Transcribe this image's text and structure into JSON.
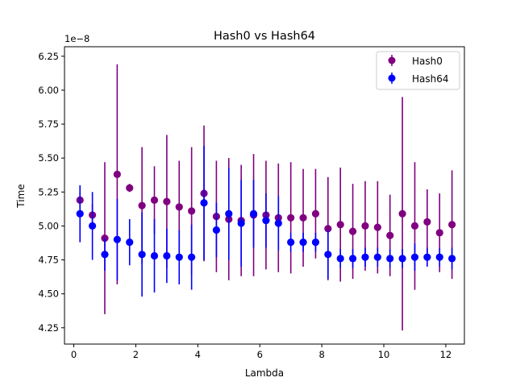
{
  "chart_data": {
    "type": "scatter",
    "title": "Hash0 vs Hash64",
    "xlabel": "Lambda",
    "ylabel": "Time",
    "offset_text": "1e−8",
    "xlim": [
      -0.3,
      12.6
    ],
    "ylim": [
      4.13,
      6.32
    ],
    "xticks": [
      0,
      2,
      4,
      6,
      8,
      10,
      12
    ],
    "xtick_labels": [
      "0",
      "2",
      "4",
      "6",
      "8",
      "10",
      "12"
    ],
    "yticks": [
      4.25,
      4.5,
      4.75,
      5.0,
      5.25,
      5.5,
      5.75,
      6.0,
      6.25
    ],
    "ytick_labels": [
      "4.25",
      "4.50",
      "4.75",
      "5.00",
      "5.25",
      "5.50",
      "5.75",
      "6.00",
      "6.25"
    ],
    "legend_position": "top-right",
    "series": [
      {
        "name": "Hash0",
        "color": "#800080",
        "x": [
          0.2,
          0.6,
          1.0,
          1.4,
          1.8,
          2.2,
          2.6,
          3.0,
          3.4,
          3.8,
          4.2,
          4.6,
          5.0,
          5.4,
          5.8,
          6.2,
          6.6,
          7.0,
          7.4,
          7.8,
          8.2,
          8.6,
          9.0,
          9.4,
          9.8,
          10.2,
          10.6,
          11.0,
          11.4,
          11.8,
          12.2
        ],
        "y": [
          5.19,
          5.08,
          4.91,
          5.38,
          5.28,
          5.15,
          5.19,
          5.18,
          5.14,
          5.11,
          5.24,
          5.07,
          5.05,
          5.04,
          5.08,
          5.08,
          5.06,
          5.06,
          5.06,
          5.09,
          4.98,
          5.01,
          4.96,
          5.0,
          4.99,
          4.93,
          5.09,
          5.0,
          5.03,
          4.95,
          5.01
        ],
        "err": [
          0.06,
          0.08,
          0.56,
          0.81,
          0.03,
          0.43,
          0.25,
          0.49,
          0.34,
          0.47,
          0.5,
          0.41,
          0.45,
          0.41,
          0.45,
          0.4,
          0.4,
          0.41,
          0.36,
          0.33,
          0.38,
          0.42,
          0.35,
          0.33,
          0.34,
          0.3,
          0.86,
          0.47,
          0.24,
          0.29,
          0.4
        ]
      },
      {
        "name": "Hash64",
        "color": "#0000ff",
        "x": [
          0.2,
          0.6,
          1.0,
          1.4,
          1.8,
          2.2,
          2.6,
          3.0,
          3.4,
          3.8,
          4.2,
          4.6,
          5.0,
          5.4,
          5.8,
          6.2,
          6.6,
          7.0,
          7.4,
          7.8,
          8.2,
          8.6,
          9.0,
          9.4,
          9.8,
          10.2,
          10.6,
          11.0,
          11.4,
          11.8,
          12.2
        ],
        "y": [
          5.09,
          5.0,
          4.79,
          4.9,
          4.88,
          4.79,
          4.78,
          4.78,
          4.77,
          4.77,
          5.17,
          4.97,
          5.09,
          5.02,
          5.09,
          5.04,
          5.02,
          4.88,
          4.88,
          4.88,
          4.79,
          4.76,
          4.76,
          4.77,
          4.77,
          4.76,
          4.76,
          4.77,
          4.77,
          4.77,
          4.76
        ],
        "err": [
          0.21,
          0.25,
          0.12,
          0.3,
          0.17,
          0.31,
          0.27,
          0.2,
          0.2,
          0.24,
          0.42,
          0.2,
          0.34,
          0.32,
          0.25,
          0.2,
          0.2,
          0.07,
          0.07,
          0.07,
          0.18,
          0.07,
          0.07,
          0.07,
          0.07,
          0.07,
          0.07,
          0.1,
          0.07,
          0.07,
          0.08
        ]
      }
    ]
  }
}
